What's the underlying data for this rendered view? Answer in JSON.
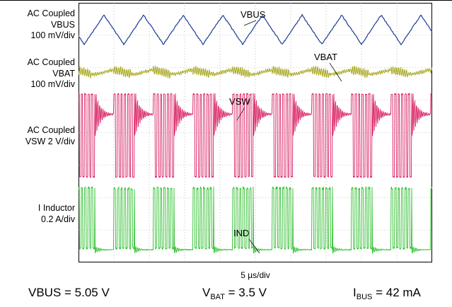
{
  "labels": {
    "vbus": [
      "AC Coupled",
      "VBUS",
      "100 mV/div"
    ],
    "vbat": [
      "AC  Coupled",
      "VBAT",
      "100 mV/div"
    ],
    "vsw": [
      "AC Coupled",
      "VSW 2 V/div"
    ],
    "ind": [
      "I Inductor",
      "0.2 A/div"
    ]
  },
  "xscale": "5 µs/div",
  "conditions": {
    "vbus": {
      "text": "VBUS = 5.05 V"
    },
    "vbat": {
      "prefix": "V",
      "sub": "BAT",
      "suffix": " = 3.5 V"
    },
    "ibus": {
      "prefix": "I",
      "sub": "BUS",
      "suffix": " = 42 mA"
    }
  },
  "chart_data": {
    "type": "line",
    "title": "",
    "xlabel": "5 µs/div",
    "divisions": {
      "x": 10,
      "y": 8
    },
    "grid": true,
    "burst_period_us": 5.6,
    "series": [
      {
        "name": "VBUS",
        "color": "#1f3a93",
        "waveform": "triangle",
        "pp_div": 0.9
      },
      {
        "name": "VBAT",
        "color": "#a8a821",
        "waveform": "ripple",
        "pp_div": 0.3
      },
      {
        "name": "VSW",
        "color": "#d81b60",
        "waveform": "switching bursts",
        "pp_div": 2.6
      },
      {
        "name": "IND",
        "color": "#2fbf2f",
        "waveform": "current bursts",
        "pp_div": 1.9
      }
    ]
  }
}
